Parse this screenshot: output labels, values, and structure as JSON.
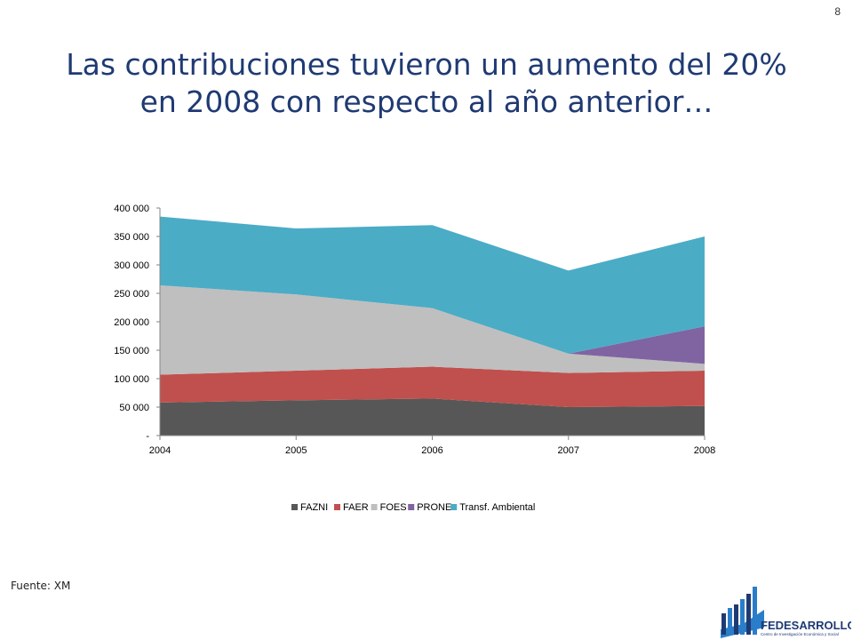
{
  "page": {
    "number": "8"
  },
  "title": {
    "line1": "Las contribuciones tuvieron un aumento del 20%",
    "line2": "en 2008 con respecto al año anterior…"
  },
  "source": "Fuente: XM",
  "logo": {
    "name": "FEDESARROLLO",
    "subtitle": "Centro de Investigación Económica y Social"
  },
  "chart_data": {
    "type": "area",
    "stacked": true,
    "x": [
      "2004",
      "2005",
      "2006",
      "2007",
      "2008"
    ],
    "ylim": [
      0,
      400000
    ],
    "yticks": [
      0,
      50000,
      100000,
      150000,
      200000,
      250000,
      300000,
      350000,
      400000
    ],
    "ytick_labels": [
      "-",
      "50 000",
      "100 000",
      "150 000",
      "200 000",
      "250 000",
      "300 000",
      "350 000",
      "400 000"
    ],
    "legend_position": "bottom",
    "grid": false,
    "series": [
      {
        "name": "FAZNI",
        "color": "#575757",
        "values": [
          58000,
          62000,
          65000,
          50000,
          52000
        ]
      },
      {
        "name": "FAER",
        "color": "#c0504d",
        "values": [
          49000,
          52000,
          56000,
          60000,
          62000
        ]
      },
      {
        "name": "FOES",
        "color": "#bfbfbf",
        "values": [
          157000,
          134000,
          103000,
          34000,
          12000
        ]
      },
      {
        "name": "PRONE",
        "color": "#8064a2",
        "values": [
          0,
          0,
          0,
          0,
          66000
        ]
      },
      {
        "name": "Transf. Ambiental",
        "color": "#4bacc6",
        "values": [
          121000,
          116000,
          146000,
          146000,
          158000
        ]
      }
    ]
  }
}
